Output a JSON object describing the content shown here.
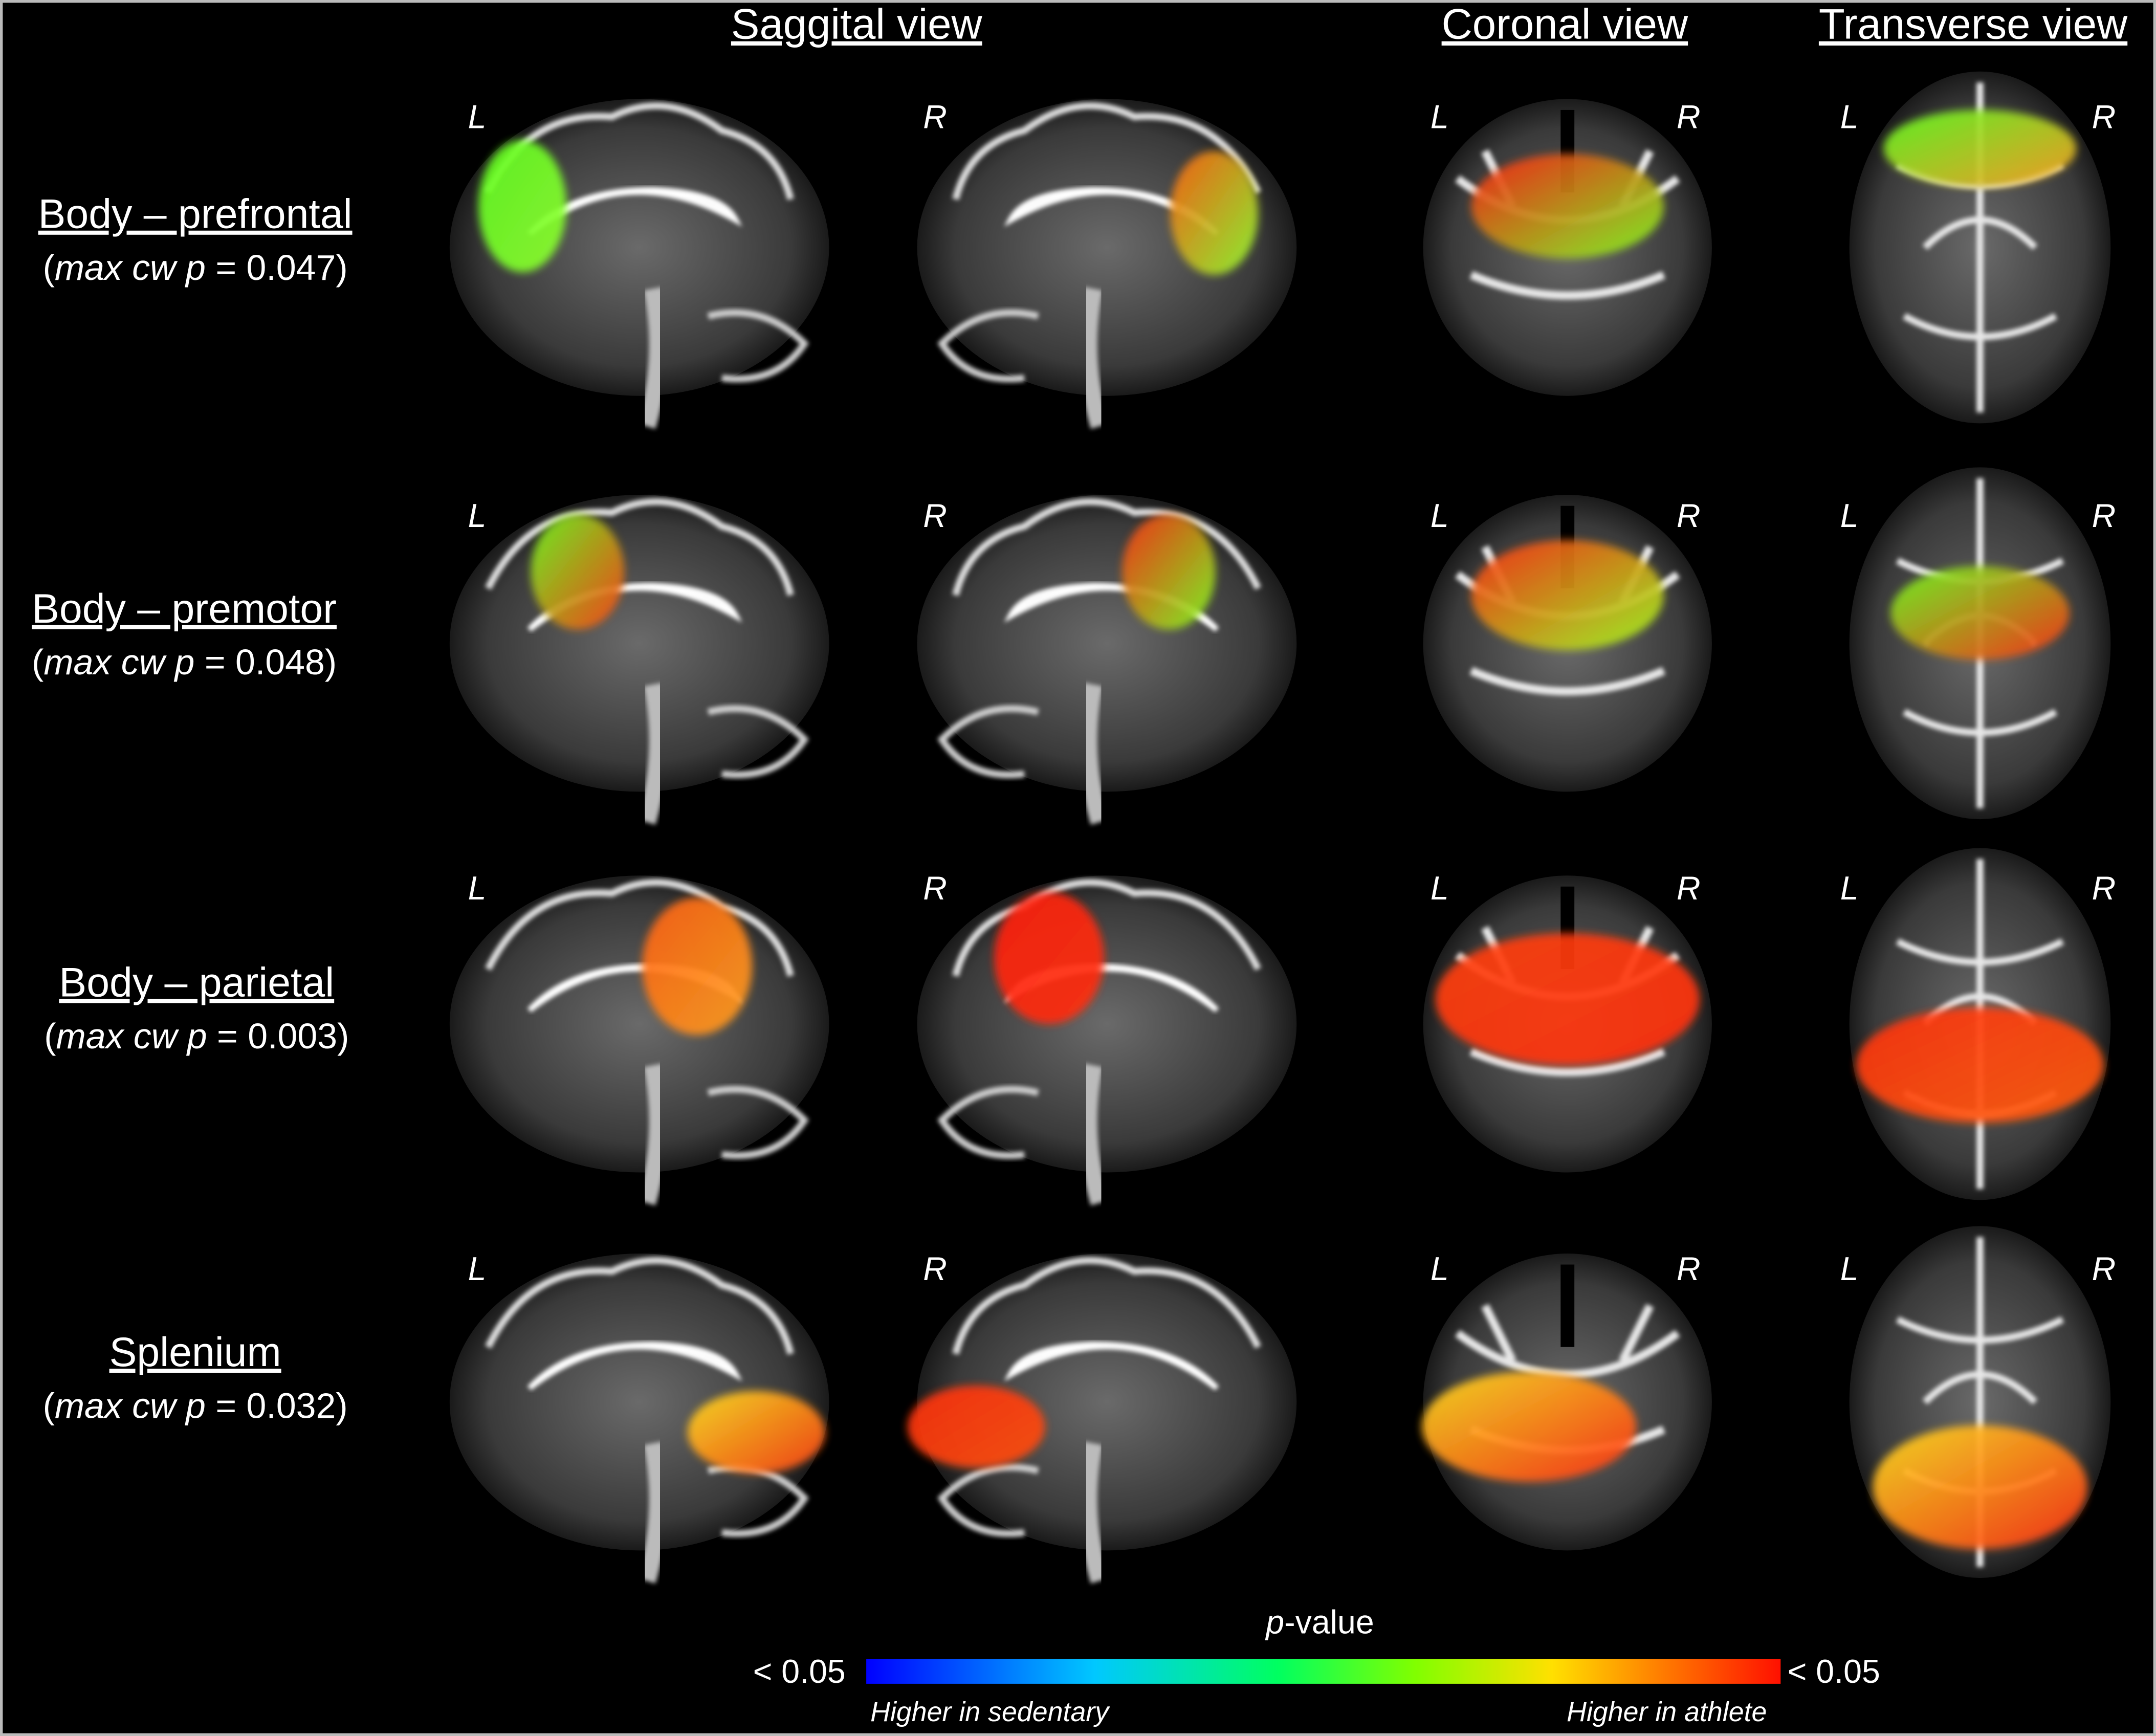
{
  "headers": {
    "sagittal": "Saggital view",
    "coronal": "Coronal view",
    "transverse": "Transverse view"
  },
  "side_labels": {
    "left": "L",
    "right": "R"
  },
  "rows": [
    {
      "title": "Body – prefrontal",
      "stat": [
        {
          "text": "(",
          "italic": false
        },
        {
          "text": "max cw p",
          "italic": true
        },
        {
          "text": " = 0.047)",
          "italic": false
        }
      ]
    },
    {
      "title": "Body – premotor",
      "stat": [
        {
          "text": "(",
          "italic": false
        },
        {
          "text": "max cw p",
          "italic": true
        },
        {
          "text": " = 0.048)",
          "italic": false
        }
      ]
    },
    {
      "title": "Body – parietal",
      "stat": [
        {
          "text": "(",
          "italic": false
        },
        {
          "text": "max cw p",
          "italic": true
        },
        {
          "text": " = 0.003)",
          "italic": false
        }
      ]
    },
    {
      "title": "Splenium",
      "stat": [
        {
          "text": "(",
          "italic": false
        },
        {
          "text": "max cw p",
          "italic": true
        },
        {
          "text": " = 0.032)",
          "italic": false
        }
      ]
    }
  ],
  "colorbar": {
    "title": [
      {
        "text": "p",
        "italic": true
      },
      {
        "text": "-value",
        "italic": false
      }
    ],
    "left_label": "< 0.05",
    "right_label": "< 0.05",
    "left_caption": "Higher in sedentary",
    "right_caption": "Higher in athlete"
  }
}
